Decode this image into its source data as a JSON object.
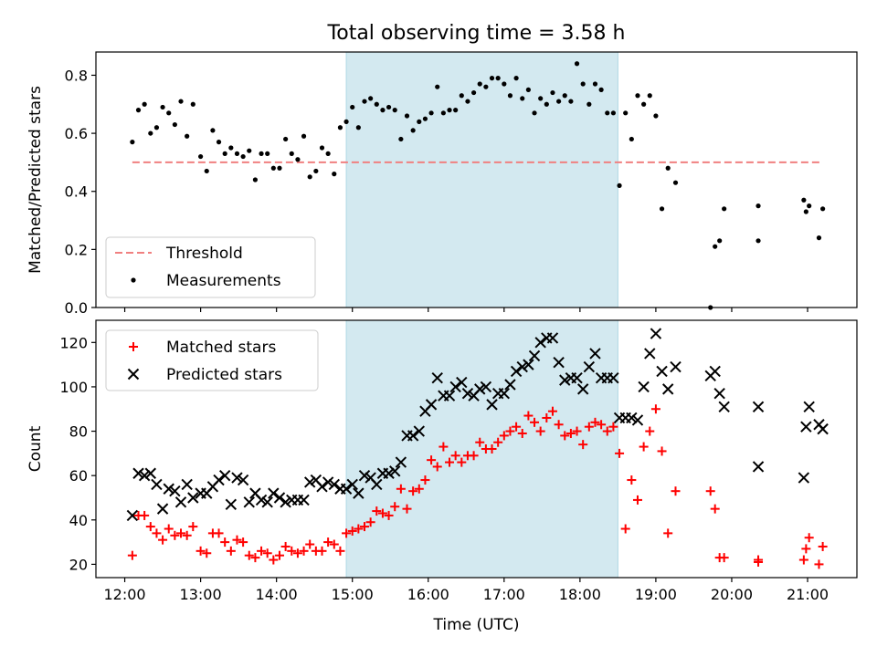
{
  "chart_data": [
    {
      "type": "scatter",
      "title": "Total observing time = 3.58 h",
      "ylabel": "Matched/Predicted stars",
      "xlabel": "",
      "xlim": [
        11.62,
        21.65
      ],
      "ylim": [
        0,
        0.88
      ],
      "yticks": [
        "0.0",
        "0.2",
        "0.4",
        "0.6",
        "0.8"
      ],
      "grid": false,
      "legend": "bottom-left",
      "highlight_span": {
        "from": 14.92,
        "to": 18.5,
        "color": "#d3e9f0"
      },
      "threshold": {
        "name": "Threshold",
        "value": 0.5,
        "from": 12.1,
        "to": 21.2,
        "color": "#f08080"
      },
      "series": [
        {
          "name": "Measurements",
          "color": "#000000",
          "marker": "dot",
          "x": [
            12.1,
            12.18,
            12.26,
            12.34,
            12.42,
            12.5,
            12.58,
            12.66,
            12.74,
            12.82,
            12.9,
            13.0,
            13.08,
            13.16,
            13.24,
            13.32,
            13.4,
            13.48,
            13.56,
            13.64,
            13.72,
            13.8,
            13.88,
            13.96,
            14.04,
            14.12,
            14.2,
            14.28,
            14.36,
            14.44,
            14.52,
            14.6,
            14.68,
            14.76,
            14.84,
            14.92,
            15.0,
            15.08,
            15.16,
            15.24,
            15.32,
            15.4,
            15.48,
            15.56,
            15.64,
            15.72,
            15.8,
            15.88,
            15.96,
            16.04,
            16.12,
            16.2,
            16.28,
            16.36,
            16.44,
            16.52,
            16.6,
            16.68,
            16.76,
            16.84,
            16.92,
            17.0,
            17.08,
            17.16,
            17.24,
            17.32,
            17.4,
            17.48,
            17.56,
            17.64,
            17.72,
            17.8,
            17.88,
            17.96,
            18.04,
            18.12,
            18.2,
            18.28,
            18.36,
            18.44,
            18.52,
            18.6,
            18.68,
            18.76,
            18.84,
            18.92,
            19.0,
            19.08,
            19.16,
            19.26,
            19.72,
            19.78,
            19.84,
            19.9,
            20.35,
            20.35,
            20.95,
            20.98,
            21.02,
            21.15,
            21.2
          ],
          "y": [
            0.57,
            0.68,
            0.7,
            0.6,
            0.62,
            0.69,
            0.67,
            0.63,
            0.71,
            0.59,
            0.7,
            0.52,
            0.47,
            0.61,
            0.57,
            0.53,
            0.55,
            0.53,
            0.52,
            0.54,
            0.44,
            0.53,
            0.53,
            0.48,
            0.48,
            0.58,
            0.53,
            0.51,
            0.59,
            0.45,
            0.47,
            0.55,
            0.53,
            0.46,
            0.62,
            0.64,
            0.69,
            0.62,
            0.71,
            0.72,
            0.7,
            0.68,
            0.69,
            0.68,
            0.58,
            0.66,
            0.61,
            0.64,
            0.65,
            0.67,
            0.76,
            0.67,
            0.68,
            0.68,
            0.73,
            0.71,
            0.74,
            0.77,
            0.76,
            0.79,
            0.79,
            0.77,
            0.73,
            0.79,
            0.72,
            0.75,
            0.67,
            0.72,
            0.7,
            0.74,
            0.71,
            0.73,
            0.71,
            0.84,
            0.77,
            0.7,
            0.77,
            0.75,
            0.67,
            0.67,
            0.42,
            0.67,
            0.58,
            0.73,
            0.7,
            0.73,
            0.66,
            0.34,
            0.48,
            0.43,
            0.0,
            0.21,
            0.23,
            0.34,
            0.23,
            0.35,
            0.37,
            0.33,
            0.35,
            0.24,
            0.34
          ]
        }
      ]
    },
    {
      "type": "scatter",
      "title": "",
      "ylabel": "Count",
      "xlabel": "Time (UTC)",
      "xlim": [
        11.62,
        21.65
      ],
      "ylim": [
        14,
        130
      ],
      "yticks": [
        "20",
        "40",
        "60",
        "80",
        "100",
        "120"
      ],
      "xticks": [
        "12:00",
        "13:00",
        "14:00",
        "15:00",
        "16:00",
        "17:00",
        "18:00",
        "19:00",
        "20:00",
        "21:00"
      ],
      "grid": false,
      "legend": "top-left",
      "highlight_span": {
        "from": 14.92,
        "to": 18.5,
        "color": "#d3e9f0"
      },
      "series": [
        {
          "name": "Matched stars",
          "color": "#ff0000",
          "marker": "plus",
          "x": [
            12.1,
            12.18,
            12.26,
            12.34,
            12.42,
            12.5,
            12.58,
            12.66,
            12.74,
            12.82,
            12.9,
            13.0,
            13.08,
            13.16,
            13.24,
            13.32,
            13.4,
            13.48,
            13.56,
            13.64,
            13.72,
            13.8,
            13.88,
            13.96,
            14.04,
            14.12,
            14.2,
            14.28,
            14.36,
            14.44,
            14.52,
            14.6,
            14.68,
            14.76,
            14.84,
            14.92,
            15.0,
            15.08,
            15.16,
            15.24,
            15.32,
            15.4,
            15.48,
            15.56,
            15.64,
            15.72,
            15.8,
            15.88,
            15.96,
            16.04,
            16.12,
            16.2,
            16.28,
            16.36,
            16.44,
            16.52,
            16.6,
            16.68,
            16.76,
            16.84,
            16.92,
            17.0,
            17.08,
            17.16,
            17.24,
            17.32,
            17.4,
            17.48,
            17.56,
            17.64,
            17.72,
            17.8,
            17.88,
            17.96,
            18.04,
            18.12,
            18.2,
            18.28,
            18.36,
            18.44,
            18.52,
            18.6,
            18.68,
            18.76,
            18.84,
            18.92,
            19.0,
            19.08,
            19.16,
            19.26,
            19.72,
            19.78,
            19.84,
            19.9,
            20.35,
            20.35,
            20.95,
            20.98,
            21.02,
            21.15,
            21.2
          ],
          "y": [
            24,
            42,
            42,
            37,
            34,
            31,
            36,
            33,
            34,
            33,
            37,
            26,
            25,
            34,
            34,
            30,
            26,
            31,
            30,
            24,
            23,
            26,
            25,
            22,
            24,
            28,
            26,
            25,
            26,
            29,
            26,
            26,
            30,
            29,
            26,
            34,
            35,
            36,
            37,
            39,
            44,
            43,
            42,
            46,
            54,
            45,
            53,
            54,
            58,
            67,
            64,
            73,
            66,
            69,
            66,
            69,
            69,
            75,
            72,
            72,
            75,
            78,
            80,
            82,
            79,
            87,
            84,
            80,
            86,
            89,
            83,
            78,
            79,
            80,
            74,
            82,
            84,
            83,
            80,
            82,
            70,
            36,
            58,
            49,
            73,
            80,
            90,
            71,
            34,
            53,
            53,
            45,
            23,
            23,
            21,
            22,
            22,
            27,
            32,
            20,
            28
          ]
        },
        {
          "name": "Predicted stars",
          "color": "#000000",
          "marker": "cross",
          "x": [
            12.1,
            12.18,
            12.26,
            12.34,
            12.42,
            12.5,
            12.58,
            12.66,
            12.74,
            12.82,
            12.9,
            13.0,
            13.08,
            13.16,
            13.24,
            13.32,
            13.4,
            13.48,
            13.56,
            13.64,
            13.72,
            13.8,
            13.88,
            13.96,
            14.04,
            14.12,
            14.2,
            14.28,
            14.36,
            14.44,
            14.52,
            14.6,
            14.68,
            14.76,
            14.84,
            14.92,
            15.0,
            15.08,
            15.16,
            15.24,
            15.32,
            15.4,
            15.48,
            15.56,
            15.64,
            15.72,
            15.8,
            15.88,
            15.96,
            16.04,
            16.12,
            16.2,
            16.28,
            16.36,
            16.44,
            16.52,
            16.6,
            16.68,
            16.76,
            16.84,
            16.92,
            17.0,
            17.08,
            17.16,
            17.24,
            17.32,
            17.4,
            17.48,
            17.56,
            17.64,
            17.72,
            17.8,
            17.88,
            17.96,
            18.04,
            18.12,
            18.2,
            18.28,
            18.36,
            18.44,
            18.52,
            18.6,
            18.68,
            18.76,
            18.84,
            18.92,
            19.0,
            19.08,
            19.16,
            19.26,
            19.72,
            19.78,
            19.84,
            19.9,
            20.35,
            20.35,
            20.95,
            20.98,
            21.02,
            21.15,
            21.2
          ],
          "y": [
            42,
            61,
            60,
            61,
            56,
            45,
            54,
            53,
            48,
            56,
            50,
            52,
            52,
            55,
            58,
            60,
            47,
            59,
            58,
            48,
            52,
            49,
            48,
            52,
            50,
            48,
            49,
            49,
            49,
            57,
            58,
            55,
            57,
            56,
            54,
            54,
            56,
            52,
            60,
            59,
            56,
            61,
            61,
            62,
            66,
            78,
            78,
            80,
            89,
            92,
            104,
            96,
            96,
            100,
            102,
            97,
            96,
            99,
            100,
            92,
            97,
            97,
            101,
            107,
            109,
            110,
            114,
            120,
            122,
            122,
            111,
            103,
            104,
            104,
            99,
            109,
            115,
            104,
            104,
            104,
            86,
            86,
            86,
            85,
            100,
            115,
            124,
            107,
            99,
            109,
            105,
            107,
            97,
            91,
            64,
            91,
            59,
            82,
            91,
            83,
            81
          ]
        }
      ]
    }
  ]
}
